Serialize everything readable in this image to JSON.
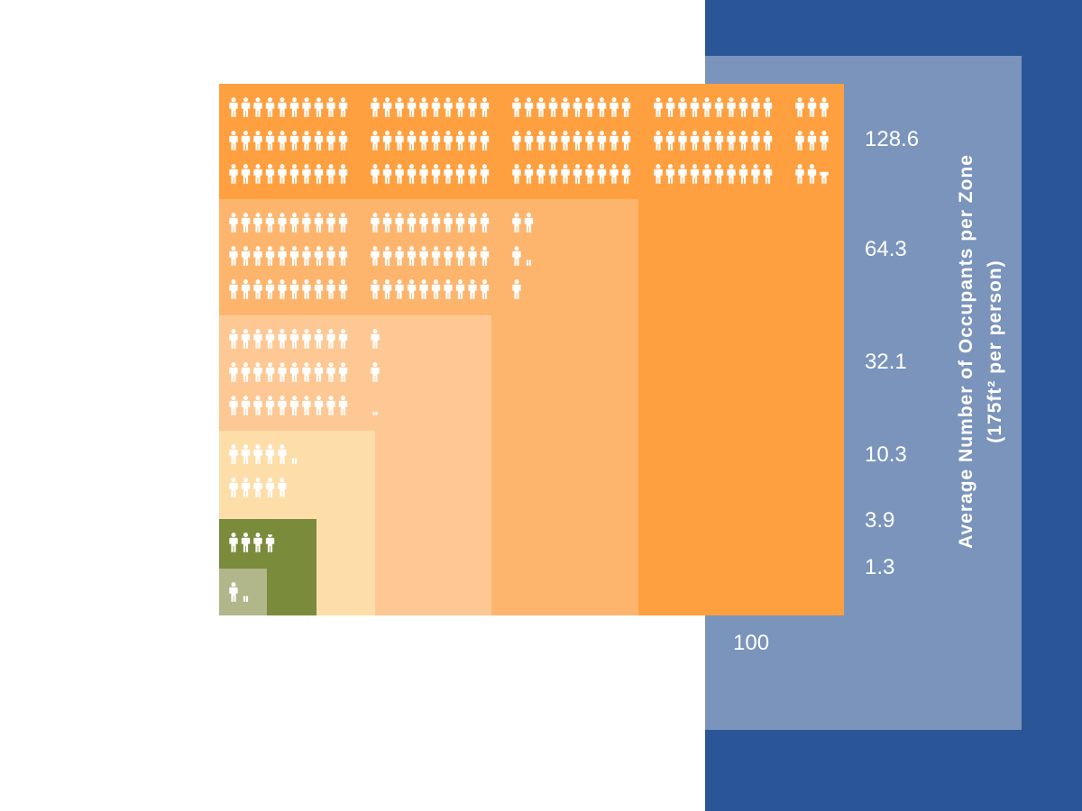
{
  "colors": {
    "background": "#ffffff",
    "outer_panel": "#2a5597",
    "inner_panel": "#7a94bc",
    "icon": "#ffffff"
  },
  "chart_data": {
    "type": "nested-area-pictogram",
    "title": "",
    "ylabel": "Average Number of Occupants per Zone",
    "ylabel_line2": "(175ft² per person)",
    "xlabel_partial": "ne",
    "x_tick_labels": [
      "100"
    ],
    "y_tick_labels": [
      "128.6",
      "64.3",
      "32.1",
      "10.3",
      "3.9",
      "1.3"
    ],
    "levels": [
      {
        "occupants": 128.6,
        "color": "#ffa040"
      },
      {
        "occupants": 64.3,
        "color": "#fdb56e"
      },
      {
        "occupants": 32.1,
        "color": "#fdc893"
      },
      {
        "occupants": 10.3,
        "color": "#fddea9"
      },
      {
        "occupants": 3.9,
        "color": "#7a8b3c"
      },
      {
        "occupants": 1.3,
        "color": "#b1b78a"
      }
    ]
  }
}
